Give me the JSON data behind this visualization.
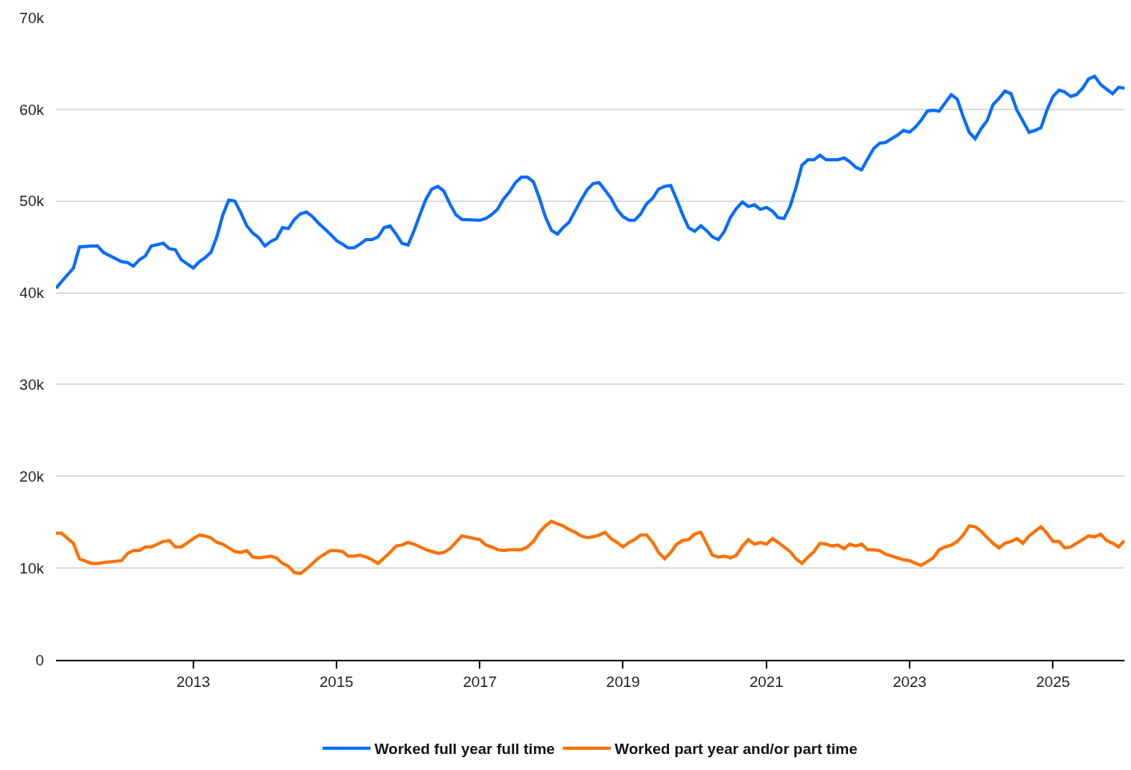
{
  "chart_data": {
    "type": "line",
    "x": [
      "2011-02",
      "2011-03",
      "2011-05",
      "2011-06",
      "2011-08",
      "2011-09",
      "2011-10",
      "2012-01",
      "2012-02",
      "2012-03",
      "2012-04",
      "2012-05",
      "2012-06",
      "2012-08",
      "2012-09",
      "2012-10",
      "2012-11",
      "2013-01",
      "2013-02",
      "2013-03",
      "2013-04",
      "2013-05",
      "2013-06",
      "2013-07",
      "2013-08",
      "2013-09",
      "2013-10",
      "2013-11",
      "2013-12",
      "2014-01",
      "2014-02",
      "2014-03",
      "2014-04",
      "2014-05",
      "2014-06",
      "2014-07",
      "2014-08",
      "2014-09",
      "2014-10",
      "2014-12",
      "2015-01",
      "2015-02",
      "2015-03",
      "2015-04",
      "2015-05",
      "2015-06",
      "2015-07",
      "2015-08",
      "2015-09",
      "2015-10",
      "2015-11",
      "2015-12",
      "2016-01",
      "2016-02",
      "2016-03",
      "2016-04",
      "2016-05",
      "2016-06",
      "2016-07",
      "2016-08",
      "2016-09",
      "2016-10",
      "2017-01",
      "2017-02",
      "2017-03",
      "2017-04",
      "2017-05",
      "2017-06",
      "2017-07",
      "2017-08",
      "2017-09",
      "2017-10",
      "2017-11",
      "2017-12",
      "2018-01",
      "2018-02",
      "2018-03",
      "2018-04",
      "2018-05",
      "2018-06",
      "2018-07",
      "2018-08",
      "2018-09",
      "2018-10",
      "2018-11",
      "2018-12",
      "2019-01",
      "2019-02",
      "2019-03",
      "2019-04",
      "2019-05",
      "2019-06",
      "2019-07",
      "2019-08",
      "2019-09",
      "2019-10",
      "2019-11",
      "2019-12",
      "2020-01",
      "2020-02",
      "2020-03",
      "2020-04",
      "2020-05",
      "2020-06",
      "2020-07",
      "2020-08",
      "2020-09",
      "2020-10",
      "2020-11",
      "2020-12",
      "2021-01",
      "2021-02",
      "2021-03",
      "2021-04",
      "2021-05",
      "2021-06",
      "2021-07",
      "2021-08",
      "2021-09",
      "2021-10",
      "2021-11",
      "2021-12",
      "2022-01",
      "2022-02",
      "2022-03",
      "2022-04",
      "2022-05",
      "2022-06",
      "2022-07",
      "2022-08",
      "2022-09",
      "2022-10",
      "2022-11",
      "2022-12",
      "2023-01",
      "2023-02",
      "2023-03",
      "2023-04",
      "2023-05",
      "2023-06",
      "2023-07",
      "2023-08",
      "2023-09",
      "2023-10",
      "2023-11",
      "2023-12",
      "2024-01",
      "2024-02",
      "2024-03",
      "2024-04",
      "2024-05",
      "2024-06",
      "2024-07",
      "2024-08",
      "2024-09",
      "2024-10",
      "2024-11",
      "2024-12",
      "2025-01",
      "2025-02",
      "2025-03",
      "2025-04",
      "2025-05",
      "2025-06",
      "2025-07",
      "2025-08",
      "2025-09",
      "2025-10",
      "2025-11",
      "2025-12",
      "2026-01"
    ],
    "series": [
      {
        "name": "Worked full year full time",
        "color": "#0a6cff",
        "values": [
          40500,
          41200,
          42700,
          45000,
          45100,
          45100,
          44400,
          43400,
          43300,
          42900,
          43600,
          44000,
          45100,
          45400,
          44800,
          44700,
          43600,
          42700,
          43400,
          43800,
          44400,
          46100,
          48500,
          50100,
          50000,
          48700,
          47300,
          46500,
          46000,
          45100,
          45600,
          45900,
          47100,
          47000,
          48000,
          48600,
          48800,
          48300,
          47600,
          46400,
          45700,
          45300,
          44900,
          44900,
          45300,
          45800,
          45800,
          46100,
          47100,
          47300,
          46400,
          45400,
          45200,
          46800,
          48500,
          50200,
          51300,
          51600,
          51100,
          49700,
          48500,
          48000,
          47900,
          48100,
          48500,
          49100,
          50200,
          51000,
          52000,
          52600,
          52600,
          52100,
          50300,
          48300,
          46800,
          46400,
          47100,
          47700,
          48900,
          50100,
          51200,
          51900,
          52000,
          51200,
          50300,
          49100,
          48300,
          47900,
          47900,
          48600,
          49700,
          50300,
          51300,
          51600,
          51700,
          50200,
          48500,
          47100,
          46700,
          47300,
          46800,
          46100,
          45800,
          46700,
          48200,
          49200,
          49900,
          49400,
          49600,
          49100,
          49300,
          48900,
          48200,
          48100,
          49400,
          51500,
          53900,
          54500,
          54500,
          55000,
          54500,
          54500,
          54500,
          54700,
          54300,
          53700,
          53400,
          54600,
          55700,
          56300,
          56400,
          56800,
          57200,
          57700,
          57500,
          58100,
          58800,
          59800,
          59900,
          59800,
          60700,
          61600,
          61100,
          59200,
          57500,
          56800,
          57900,
          58800,
          60500,
          61200,
          62000,
          61700,
          59900,
          58700,
          57500,
          57700,
          58000,
          59900,
          61400,
          62100,
          61900,
          61400,
          61600,
          62300,
          63300,
          63600,
          62700,
          62200,
          61700,
          62400,
          62300
        ]
      },
      {
        "name": "Worked part year and/or part time",
        "color": "#ff7000",
        "values": [
          13800,
          13800,
          12700,
          11000,
          10500,
          10500,
          10600,
          10800,
          11600,
          11900,
          11900,
          12300,
          12300,
          12900,
          13000,
          12300,
          12300,
          13200,
          13600,
          13500,
          13300,
          12800,
          12600,
          12200,
          11800,
          11700,
          11900,
          11200,
          11100,
          11200,
          11300,
          11100,
          10500,
          10200,
          9500,
          9400,
          9900,
          10500,
          11100,
          11900,
          11900,
          11800,
          11300,
          11300,
          11400,
          11200,
          10900,
          10500,
          11100,
          11700,
          12400,
          12500,
          12800,
          12600,
          12300,
          12000,
          11800,
          11600,
          11700,
          12100,
          12800,
          13500,
          13100,
          12500,
          12300,
          12000,
          11900,
          12000,
          12000,
          12000,
          12300,
          12900,
          13900,
          14600,
          15100,
          14800,
          14600,
          14200,
          13900,
          13500,
          13300,
          13400,
          13600,
          13900,
          13200,
          12800,
          12300,
          12800,
          13100,
          13600,
          13600,
          12800,
          11700,
          11000,
          11700,
          12600,
          13000,
          13100,
          13700,
          13900,
          12700,
          11400,
          11200,
          11300,
          11100,
          11400,
          12400,
          13100,
          12600,
          12800,
          12600,
          13200,
          12800,
          12300,
          11800,
          11000,
          10500,
          11200,
          11800,
          12700,
          12600,
          12400,
          12500,
          12100,
          12600,
          12400,
          12600,
          12000,
          12000,
          11900,
          11500,
          11300,
          11100,
          10900,
          10800,
          10500,
          10300,
          10700,
          11100,
          12000,
          12300,
          12500,
          12900,
          13600,
          14600,
          14500,
          14000,
          13300,
          12700,
          12200,
          12700,
          12900,
          13200,
          12700,
          13500,
          14000,
          14500,
          13800,
          12900,
          12900,
          12200,
          12300,
          12700,
          13100,
          13500,
          13400,
          13700,
          13000,
          12700,
          12300,
          13000
        ]
      }
    ],
    "xlim": [
      "2011-02",
      "2026-01"
    ],
    "xticks": [
      "2013",
      "2015",
      "2017",
      "2019",
      "2021",
      "2023",
      "2025"
    ],
    "ylim": [
      0,
      70000
    ],
    "yticks": [
      {
        "value": 0,
        "label": "0"
      },
      {
        "value": 10000,
        "label": "10k"
      },
      {
        "value": 20000,
        "label": "20k"
      },
      {
        "value": 30000,
        "label": "30k"
      },
      {
        "value": 40000,
        "label": "40k"
      },
      {
        "value": 50000,
        "label": "50k"
      },
      {
        "value": 60000,
        "label": "60k"
      },
      {
        "value": 70000,
        "label": "70k"
      }
    ],
    "grid": "y",
    "legend": "bottom"
  }
}
